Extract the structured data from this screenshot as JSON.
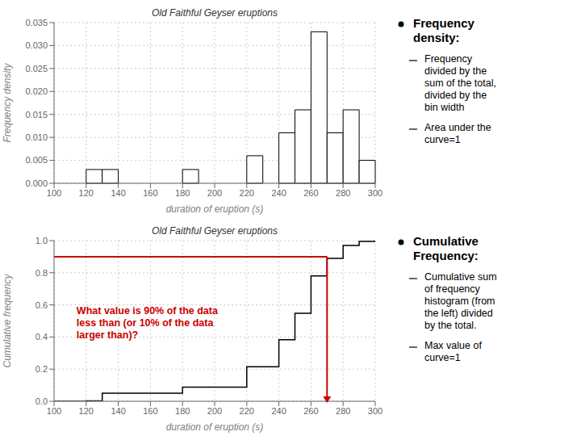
{
  "chart_data": [
    {
      "type": "histogram",
      "title": "Old Faithful Geyser eruptions",
      "x_label": "duration of eruption (s)",
      "y_label": "Frequency density",
      "bins": [
        100,
        110,
        120,
        130,
        140,
        150,
        160,
        170,
        180,
        190,
        200,
        210,
        220,
        230,
        240,
        250,
        260,
        270,
        280,
        290,
        300
      ],
      "values": [
        0,
        0,
        0.003,
        0.003,
        0,
        0,
        0,
        0,
        0.003,
        0,
        0,
        0,
        0.006,
        0,
        0.011,
        0.016,
        0.033,
        0.011,
        0.016,
        0.005
      ],
      "color": "#ffffff",
      "xlim": [
        100,
        300
      ],
      "ylim": [
        0,
        0.035
      ],
      "xticks": [
        100,
        120,
        140,
        160,
        180,
        200,
        220,
        240,
        260,
        280,
        300
      ],
      "yticks": [
        {
          "value": 0,
          "label": "0.000"
        },
        {
          "value": 0.005,
          "label": "0.005"
        },
        {
          "value": 0.01,
          "label": "0.010"
        },
        {
          "value": 0.015,
          "label": "0.015"
        },
        {
          "value": 0.02,
          "label": "0.020"
        },
        {
          "value": 0.025,
          "label": "0.025"
        },
        {
          "value": 0.03,
          "label": "0.030"
        },
        {
          "value": 0.035,
          "label": "0.035"
        }
      ],
      "grid": true,
      "notes": {
        "heading": "Frequency\ndensity:",
        "items": [
          "Frequency\ndivided by the\nsum of the total,\ndivided by the\nbin width",
          "Area under the\ncurve=1"
        ]
      }
    },
    {
      "type": "line",
      "line_style": "step",
      "color": "#000000",
      "title": "Old Faithful Geyser eruptions",
      "x_label": "duration of eruption (s)",
      "y_label": "Cumulative frequency",
      "x": [
        100,
        110,
        120,
        130,
        140,
        150,
        160,
        170,
        180,
        190,
        200,
        210,
        220,
        230,
        240,
        250,
        260,
        270,
        280,
        290,
        300
      ],
      "values": [
        0,
        0,
        0.003,
        0.05,
        0.05,
        0.05,
        0.05,
        0.05,
        0.088,
        0.088,
        0.088,
        0.088,
        0.215,
        0.215,
        0.383,
        0.548,
        0.78,
        0.89,
        0.97,
        0.995,
        1.0
      ],
      "xlim": [
        100,
        300
      ],
      "ylim": [
        0,
        1.0
      ],
      "xticks": [
        100,
        120,
        140,
        160,
        180,
        200,
        220,
        240,
        260,
        280,
        300
      ],
      "yticks": [
        {
          "value": 0,
          "label": "0.0"
        },
        {
          "value": 0.2,
          "label": "0.2"
        },
        {
          "value": 0.4,
          "label": "0.4"
        },
        {
          "value": 0.6,
          "label": "0.6"
        },
        {
          "value": 0.8,
          "label": "0.8"
        },
        {
          "value": 1.0,
          "label": "1.0"
        }
      ],
      "grid": true,
      "annotations": [
        {
          "text": "What value is 90% of the data\nless than (or 10% of the data\nlarger than)?",
          "color": "#cc0000",
          "x": 270,
          "y": 0.9
        }
      ],
      "notes": {
        "heading": "Cumulative\nFrequency:",
        "items": [
          "Cumulative sum\nof frequency\nhistogram (from\nthe left) divided\nby the total.",
          "Max value of\ncurve=1"
        ]
      }
    }
  ]
}
